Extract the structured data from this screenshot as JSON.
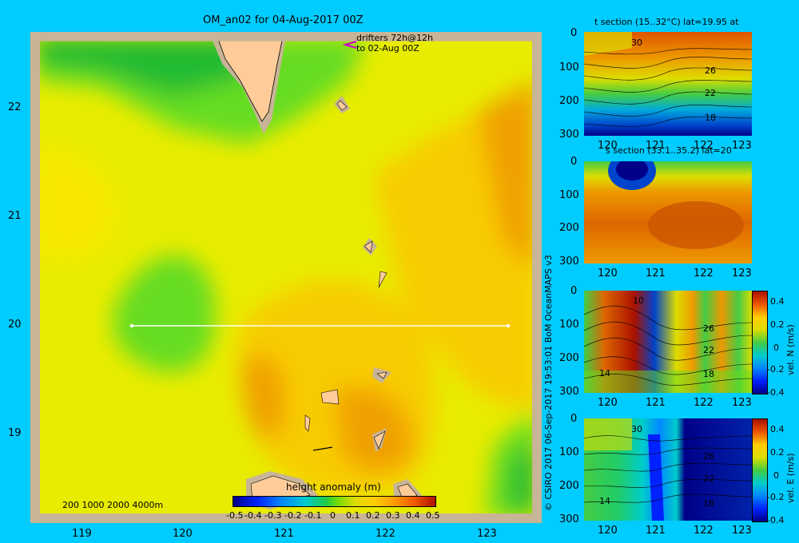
{
  "main": {
    "title": "OM_an02 for 04-Aug-2017 00Z",
    "drifter_line1": "drifters 72h@12h",
    "drifter_line2": "to 02-Aug 00Z",
    "depth_legend": "200  1000  2000  4000m",
    "x_ticks": [
      "119",
      "120",
      "121",
      "122",
      "123"
    ],
    "y_ticks": [
      "22",
      "21",
      "20",
      "19"
    ],
    "colorbar_title": "height anomaly (m)",
    "colorbar_ticks": [
      "-0.5",
      "-0.4",
      "-0.3",
      "-0.2",
      "-0.1",
      "0",
      "0.1",
      "0.2",
      "0.3",
      "0.4",
      "0.5"
    ]
  },
  "credit": "© CSIRO 2017    06-Sep-2017 19:53:01 BoM OceanMAPS v3",
  "panels": {
    "t": {
      "title": "t section (15..32°C) lat=19.95 at",
      "labels": [
        "30",
        "26",
        "22",
        "18"
      ]
    },
    "s": {
      "title": "s section (33.1..35.2) lat=20"
    },
    "n": {
      "labels": [
        "10",
        "26",
        "22",
        "18",
        "14"
      ],
      "cbar_label": "vel. N (m/s)",
      "cbar_ticks": [
        "0.4",
        "0.2",
        "0",
        "-0.2",
        "-0.4"
      ]
    },
    "e": {
      "labels": [
        "30",
        "26",
        "22",
        "18",
        "14"
      ],
      "cbar_label": "vel. E (m/s)",
      "cbar_ticks": [
        "0.4",
        "0.2",
        "0",
        "-0.2",
        "-0.4"
      ]
    },
    "x_ticks": [
      "120",
      "121",
      "122",
      "123"
    ],
    "y_ticks": [
      "0",
      "100",
      "200",
      "300"
    ]
  },
  "chart_data": [
    {
      "type": "heatmap",
      "title": "OM_an02 for 04-Aug-2017 00Z",
      "xlim": [
        118.5,
        123.5
      ],
      "ylim": [
        18.3,
        22.7
      ],
      "colorbar": {
        "label": "height anomaly (m)",
        "range": [
          -0.5,
          0.5
        ]
      },
      "section_line": {
        "lat": 20,
        "lon": [
          119.5,
          123.2
        ]
      }
    },
    {
      "type": "heatmap",
      "title": "t section (15..32°C) lat=19.95 at",
      "xlim": [
        119.6,
        123.2
      ],
      "ylim": [
        300,
        0
      ]
    },
    {
      "type": "heatmap",
      "title": "s section (33.1..35.2) lat=20",
      "xlim": [
        119.6,
        123.2
      ],
      "ylim": [
        300,
        0
      ]
    },
    {
      "type": "heatmap",
      "colorbar": {
        "label": "vel. N (m/s)",
        "range": [
          -0.4,
          0.4
        ]
      },
      "xlim": [
        119.6,
        123.2
      ],
      "ylim": [
        300,
        0
      ]
    },
    {
      "type": "heatmap",
      "colorbar": {
        "label": "vel. E (m/s)",
        "range": [
          -0.4,
          0.4
        ]
      },
      "xlim": [
        119.6,
        123.2
      ],
      "ylim": [
        300,
        0
      ]
    }
  ]
}
